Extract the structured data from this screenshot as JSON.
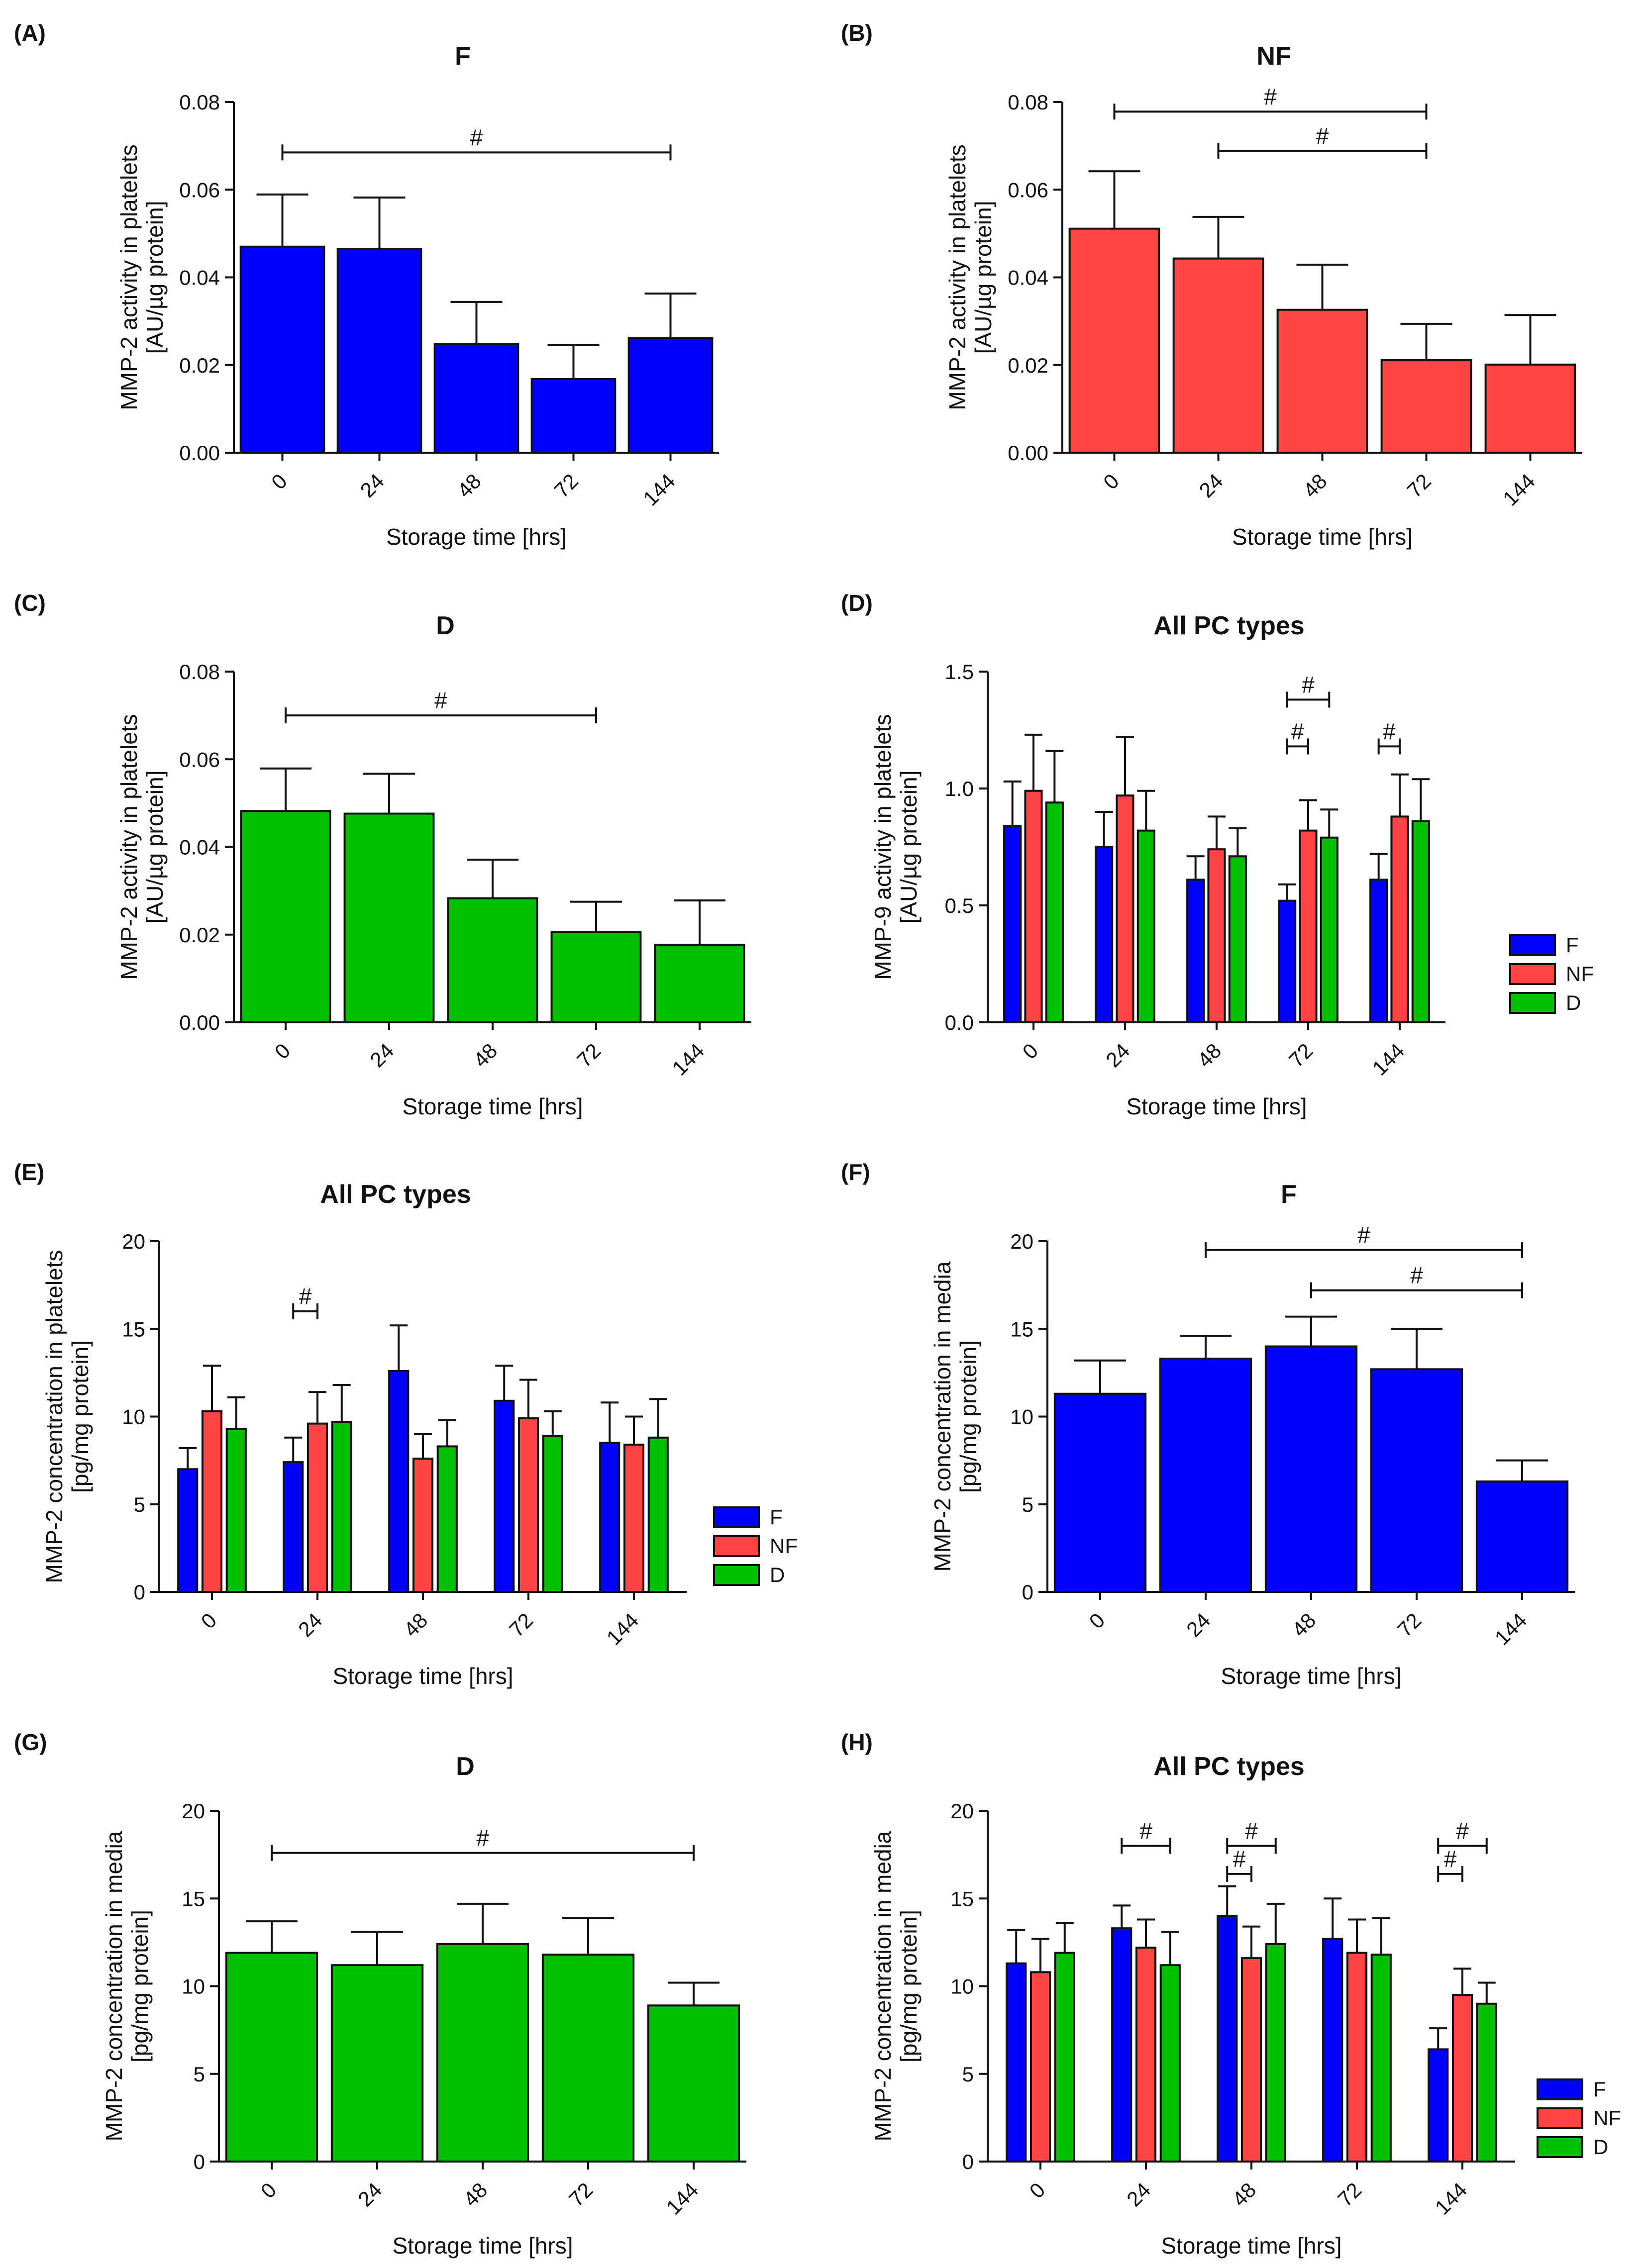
{
  "figure": {
    "panels": [
      {
        "letter": "(A)"
      },
      {
        "letter": "(B)"
      },
      {
        "letter": "(C)"
      },
      {
        "letter": "(D)"
      },
      {
        "letter": "(E)"
      },
      {
        "letter": "(F)"
      },
      {
        "letter": "(G)"
      },
      {
        "letter": "(H)"
      }
    ]
  },
  "chart_data": [
    {
      "panel": "(A)",
      "type": "bar",
      "title": "F",
      "xlabel": "Storage time [hrs]",
      "ylabel": [
        "MMP-2 activity in platelets",
        "[AU/µg protein]"
      ],
      "categories": [
        "0",
        "24",
        "48",
        "72",
        "144"
      ],
      "ylim": [
        0,
        0.08
      ],
      "yticks": [
        "0.00",
        "0.02",
        "0.04",
        "0.06",
        "0.08"
      ],
      "series": [
        {
          "name": "F",
          "color": "#0000ff",
          "values": [
            0.047,
            0.0465,
            0.0248,
            0.0168,
            0.0261
          ],
          "errors": [
            0.0119,
            0.0117,
            0.0096,
            0.0078,
            0.0102
          ]
        }
      ],
      "significance": [
        {
          "label": "#",
          "from": 0,
          "to": 4,
          "y": 0.0685
        }
      ]
    },
    {
      "panel": "(B)",
      "type": "bar",
      "title": "NF",
      "xlabel": "Storage time [hrs]",
      "ylabel": [
        "MMP-2 activity in platelets",
        "[AU/µg protein]"
      ],
      "categories": [
        "0",
        "24",
        "48",
        "72",
        "144"
      ],
      "ylim": [
        0,
        0.08
      ],
      "yticks": [
        "0.00",
        "0.02",
        "0.04",
        "0.06",
        "0.08"
      ],
      "series": [
        {
          "name": "NF",
          "color": "#ff4444",
          "values": [
            0.0511,
            0.0443,
            0.0326,
            0.0211,
            0.0201
          ],
          "errors": [
            0.0131,
            0.0095,
            0.0103,
            0.0083,
            0.0113
          ]
        }
      ],
      "significance": [
        {
          "label": "#",
          "from": 0,
          "to": 3,
          "y": 0.0778
        },
        {
          "label": "#",
          "from": 1,
          "to": 3,
          "y": 0.0688
        }
      ]
    },
    {
      "panel": "(C)",
      "type": "bar",
      "title": "D",
      "xlabel": "Storage time [hrs]",
      "ylabel": [
        "MMP-2 activity in platelets",
        "[AU/µg protein]"
      ],
      "categories": [
        "0",
        "24",
        "48",
        "72",
        "144"
      ],
      "ylim": [
        0,
        0.08
      ],
      "yticks": [
        "0.00",
        "0.02",
        "0.04",
        "0.06",
        "0.08"
      ],
      "series": [
        {
          "name": "D",
          "color": "#00c000",
          "values": [
            0.0482,
            0.0476,
            0.0283,
            0.0206,
            0.0177
          ],
          "errors": [
            0.0097,
            0.0091,
            0.0088,
            0.0069,
            0.0101
          ]
        }
      ],
      "significance": [
        {
          "label": "#",
          "from": 0,
          "to": 3,
          "y": 0.07
        }
      ]
    },
    {
      "panel": "(D)",
      "type": "bar",
      "title": "All PC types",
      "xlabel": "Storage time [hrs]",
      "ylabel": [
        "MMP-9 activity in platelets",
        "[AU/µg protein]"
      ],
      "categories": [
        "0",
        "24",
        "48",
        "72",
        "144"
      ],
      "ylim": [
        0,
        1.5
      ],
      "yticks": [
        "0.0",
        "0.5",
        "1.0",
        "1.5"
      ],
      "legend": [
        "F",
        "NF",
        "D"
      ],
      "series": [
        {
          "name": "F",
          "color": "#0000ff",
          "values": [
            0.84,
            0.75,
            0.61,
            0.52,
            0.61
          ],
          "errors": [
            0.19,
            0.15,
            0.1,
            0.07,
            0.11
          ]
        },
        {
          "name": "NF",
          "color": "#ff4444",
          "values": [
            0.99,
            0.97,
            0.74,
            0.82,
            0.88
          ],
          "errors": [
            0.24,
            0.25,
            0.14,
            0.13,
            0.18
          ]
        },
        {
          "name": "D",
          "color": "#00c000",
          "values": [
            0.94,
            0.82,
            0.71,
            0.79,
            0.86
          ],
          "errors": [
            0.22,
            0.17,
            0.12,
            0.12,
            0.18
          ]
        }
      ],
      "significance": [
        {
          "label": "#",
          "cat": 3,
          "from": 0,
          "to": 2,
          "y": 1.38
        },
        {
          "label": "#",
          "cat": 3,
          "from": 0,
          "to": 1,
          "y": 1.18
        },
        {
          "label": "#",
          "cat": 4,
          "from": 0,
          "to": 1,
          "y": 1.18
        }
      ]
    },
    {
      "panel": "(E)",
      "type": "bar",
      "title": "All PC types",
      "xlabel": "Storage time [hrs]",
      "ylabel": [
        "MMP-2 concentration in platelets",
        "[pg/mg protein]"
      ],
      "categories": [
        "0",
        "24",
        "48",
        "72",
        "144"
      ],
      "ylim": [
        0,
        20
      ],
      "yticks": [
        "0",
        "5",
        "10",
        "15",
        "20"
      ],
      "legend": [
        "F",
        "NF",
        "D"
      ],
      "series": [
        {
          "name": "F",
          "color": "#0000ff",
          "values": [
            7.0,
            7.4,
            12.6,
            10.9,
            8.5
          ],
          "errors": [
            1.2,
            1.4,
            2.6,
            2.0,
            2.3
          ]
        },
        {
          "name": "NF",
          "color": "#ff4444",
          "values": [
            10.3,
            9.6,
            7.6,
            9.9,
            8.4
          ],
          "errors": [
            2.6,
            1.8,
            1.4,
            2.2,
            1.6
          ]
        },
        {
          "name": "D",
          "color": "#00c000",
          "values": [
            9.3,
            9.7,
            8.3,
            8.9,
            8.8
          ],
          "errors": [
            1.8,
            2.1,
            1.5,
            1.4,
            2.2
          ]
        }
      ],
      "significance": [
        {
          "label": "#",
          "cat": 1,
          "from": 0,
          "to": 1,
          "y": 16.0
        }
      ]
    },
    {
      "panel": "(F)",
      "type": "bar",
      "title": "F",
      "xlabel": "Storage time [hrs]",
      "ylabel": [
        "MMP-2 concentration in media",
        "[pg/mg protein]"
      ],
      "categories": [
        "0",
        "24",
        "48",
        "72",
        "144"
      ],
      "ylim": [
        0,
        20
      ],
      "yticks": [
        "0",
        "5",
        "10",
        "15",
        "20"
      ],
      "series": [
        {
          "name": "F",
          "color": "#0000ff",
          "values": [
            11.3,
            13.3,
            14.0,
            12.7,
            6.3
          ],
          "errors": [
            1.9,
            1.3,
            1.7,
            2.3,
            1.2
          ]
        }
      ],
      "significance": [
        {
          "label": "#",
          "from": 1,
          "to": 4,
          "y": 19.5
        },
        {
          "label": "#",
          "from": 2,
          "to": 4,
          "y": 17.2
        }
      ]
    },
    {
      "panel": "(G)",
      "type": "bar",
      "title": "D",
      "xlabel": "Storage time [hrs]",
      "ylabel": [
        "MMP-2 concentration in media",
        "[pg/mg protein]"
      ],
      "categories": [
        "0",
        "24",
        "48",
        "72",
        "144"
      ],
      "ylim": [
        0,
        20
      ],
      "yticks": [
        "0",
        "5",
        "10",
        "15",
        "20"
      ],
      "series": [
        {
          "name": "D",
          "color": "#00c000",
          "values": [
            11.9,
            11.2,
            12.4,
            11.8,
            8.9
          ],
          "errors": [
            1.8,
            1.9,
            2.3,
            2.1,
            1.3
          ]
        }
      ],
      "significance": [
        {
          "label": "#",
          "from": 0,
          "to": 4,
          "y": 17.6
        }
      ]
    },
    {
      "panel": "(H)",
      "type": "bar",
      "title": "All PC types",
      "xlabel": "Storage time [hrs]",
      "ylabel": [
        "MMP-2 concentration in media",
        "[pg/mg protein]"
      ],
      "categories": [
        "0",
        "24",
        "48",
        "72",
        "144"
      ],
      "ylim": [
        0,
        20
      ],
      "yticks": [
        "0",
        "5",
        "10",
        "15",
        "20"
      ],
      "legend": [
        "F",
        "NF",
        "D"
      ],
      "series": [
        {
          "name": "F",
          "color": "#0000ff",
          "values": [
            11.3,
            13.3,
            14.0,
            12.7,
            6.4
          ],
          "errors": [
            1.9,
            1.3,
            1.7,
            2.3,
            1.2
          ]
        },
        {
          "name": "NF",
          "color": "#ff4444",
          "values": [
            10.8,
            12.2,
            11.6,
            11.9,
            9.5
          ],
          "errors": [
            1.9,
            1.6,
            1.8,
            1.9,
            1.5
          ]
        },
        {
          "name": "D",
          "color": "#00c000",
          "values": [
            11.9,
            11.2,
            12.4,
            11.8,
            9.0
          ],
          "errors": [
            1.7,
            1.9,
            2.3,
            2.1,
            1.2
          ]
        }
      ],
      "significance": [
        {
          "label": "#",
          "cat": 1,
          "from": 0,
          "to": 2,
          "y": 18.0
        },
        {
          "label": "#",
          "cat": 2,
          "from": 0,
          "to": 2,
          "y": 18.0
        },
        {
          "label": "#",
          "cat": 2,
          "from": 0,
          "to": 1,
          "y": 16.4
        },
        {
          "label": "#",
          "cat": 4,
          "from": 0,
          "to": 2,
          "y": 18.0
        },
        {
          "label": "#",
          "cat": 4,
          "from": 0,
          "to": 1,
          "y": 16.4
        }
      ]
    }
  ]
}
